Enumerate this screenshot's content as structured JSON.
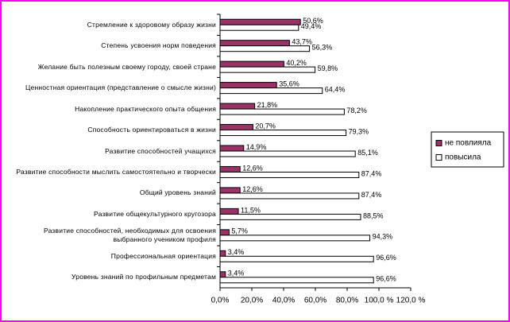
{
  "chart_data": {
    "type": "bar",
    "orientation": "horizontal",
    "categories": [
      "Стремление к здоровому образу жизни",
      "Степень усвоения норм поведения",
      "Желание быть полезным своему городу, своей стране",
      "Ценностная ориентация (представление о смысле жизни)",
      "Накопление практического опыта общения",
      "Способность ориентироваться в жизни",
      "Развитие способностей учащихся",
      "Развитие способности мыслить самостоятельно и творчески",
      "Общий уровень знаний",
      "Развитие общекультурного кругозора",
      "Развитие способностей, необходимых для освоения выбранного учеником профиля",
      "Профессиональная ориентация",
      "Уровень знаний по профильным предметам"
    ],
    "series": [
      {
        "name": "не повлияла",
        "color": "#993366",
        "values": [
          50.6,
          43.7,
          40.2,
          35.6,
          21.8,
          20.7,
          14.9,
          12.6,
          12.6,
          11.5,
          5.7,
          3.4,
          3.4
        ],
        "value_labels": [
          "50,6%",
          "43,7%",
          "40,2%",
          "35,6%",
          "21,8%",
          "20,7%",
          "14,9%",
          "12,6%",
          "12,6%",
          "11,5%",
          "5,7%",
          "3,4%",
          "3,4%"
        ]
      },
      {
        "name": "повысила",
        "color": "#ffffff",
        "values": [
          49.4,
          56.3,
          59.8,
          64.4,
          78.2,
          79.3,
          85.1,
          87.4,
          87.4,
          88.5,
          94.3,
          96.6,
          96.6
        ],
        "value_labels": [
          "49,4%",
          "56,3%",
          "59,8%",
          "64,4%",
          "78,2%",
          "79,3%",
          "85,1%",
          "87,4%",
          "87,4%",
          "88,5%",
          "94,3%",
          "96,6%",
          "96,6%"
        ]
      }
    ],
    "xlim": [
      0,
      120
    ],
    "xticks": [
      {
        "value": 0,
        "label": "0,0%"
      },
      {
        "value": 20,
        "label": "20,0%"
      },
      {
        "value": 40,
        "label": "40,0%"
      },
      {
        "value": 60,
        "label": "60,0%"
      },
      {
        "value": 80,
        "label": "80,0%"
      },
      {
        "value": 100,
        "label": "100,0 %"
      },
      {
        "value": 120,
        "label": "120,0 %"
      }
    ],
    "legend": "right"
  }
}
